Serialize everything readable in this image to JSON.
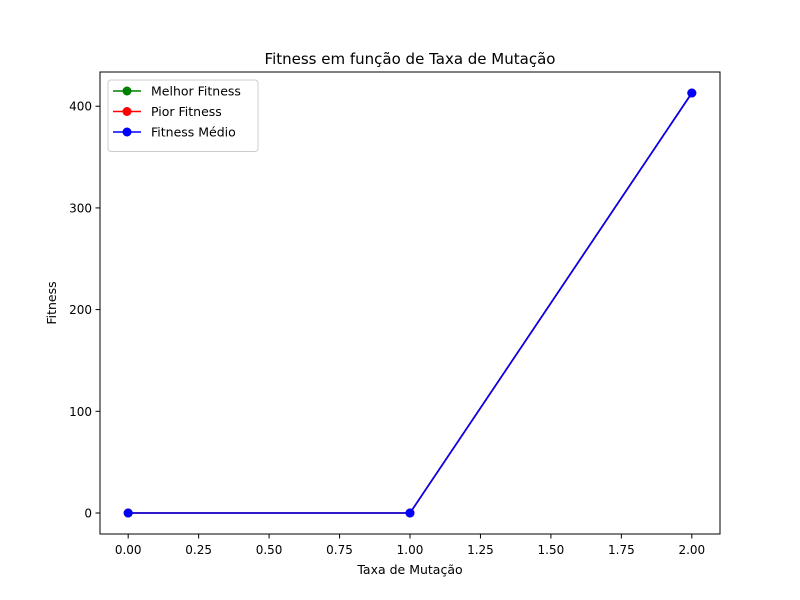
{
  "chart_data": {
    "type": "line",
    "title": "Fitness em função de Taxa de Mutação",
    "xlabel": "Taxa de Mutação",
    "ylabel": "Fitness",
    "x": [
      0,
      1,
      2
    ],
    "xlim": [
      -0.1,
      2.1
    ],
    "ylim": [
      -20.65,
      433.65
    ],
    "xticks": [
      0,
      0.25,
      0.5,
      0.75,
      1,
      1.25,
      1.5,
      1.75,
      2
    ],
    "xtick_labels": [
      "0.00",
      "0.25",
      "0.50",
      "0.75",
      "1.00",
      "1.25",
      "1.50",
      "1.75",
      "2.00"
    ],
    "yticks": [
      0,
      100,
      200,
      300,
      400
    ],
    "ytick_labels": [
      "0",
      "100",
      "200",
      "300",
      "400"
    ],
    "grid": false,
    "legend_position": "top-left",
    "series": [
      {
        "name": "Melhor Fitness",
        "color": "#008000",
        "values": [
          0,
          0,
          413
        ]
      },
      {
        "name": "Pior Fitness",
        "color": "#ff0000",
        "values": [
          0,
          0,
          413
        ]
      },
      {
        "name": "Fitness Médio",
        "color": "#0000ff",
        "values": [
          0,
          0,
          413
        ]
      }
    ]
  }
}
